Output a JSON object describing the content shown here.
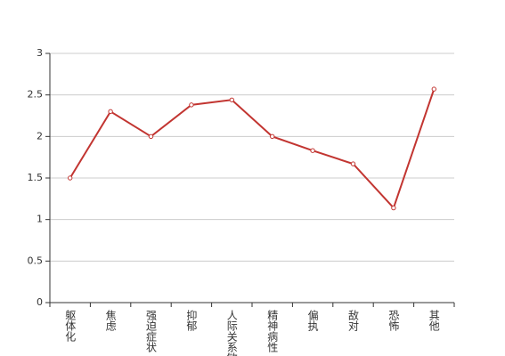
{
  "chart_data": {
    "type": "line",
    "categories": [
      "躯体化",
      "焦虑",
      "强迫症状",
      "抑郁",
      "人际关系敏感",
      "精神病性",
      "偏执",
      "敌对",
      "恐怖",
      "其他"
    ],
    "series": [
      {
        "color": "#c23531",
        "values": [
          1.5,
          2.3,
          2.0,
          2.38,
          2.44,
          2.0,
          1.83,
          1.67,
          1.14,
          2.57
        ]
      }
    ],
    "ylim": [
      0,
      3
    ],
    "yticks": [
      0,
      0.5,
      1,
      1.5,
      2,
      2.5,
      3
    ],
    "grid": true
  }
}
